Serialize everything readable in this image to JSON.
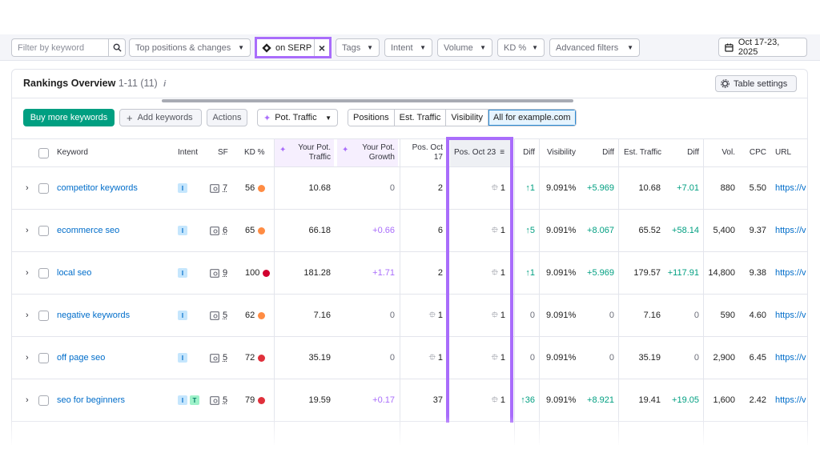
{
  "filters": {
    "search_placeholder": "Filter by keyword",
    "top_positions": "Top positions & changes",
    "serp_chip": "on SERP",
    "tags": "Tags",
    "intent": "Intent",
    "volume": "Volume",
    "kd": "KD %",
    "advanced": "Advanced filters",
    "date": "Oct 17-23, 2025"
  },
  "overview": {
    "title": "Rankings Overview",
    "range": "1-11 (11)",
    "info": "i",
    "table_settings": "Table settings"
  },
  "toolbar": {
    "buy": "Buy more keywords",
    "add": "Add keywords",
    "actions": "Actions",
    "pot_traffic": "Pot. Traffic",
    "segments": [
      "Positions",
      "Est. Traffic",
      "Visibility",
      "All for example.com"
    ]
  },
  "columns": {
    "keyword": "Keyword",
    "intent": "Intent",
    "sf": "SF",
    "kd": "KD %",
    "pot_traffic": "Your Pot. Traffic",
    "pot_growth": "Your Pot. Growth",
    "pos_oct17": "Pos. Oct 17",
    "pos_oct23": "Pos. Oct 23",
    "diff": "Diff",
    "visibility": "Visibility",
    "diff2": "Diff",
    "est_traffic": "Est. Traffic",
    "diff3": "Diff",
    "vol": "Vol.",
    "cpc": "CPC",
    "url": "URL"
  },
  "rows": [
    {
      "keyword": "competitor keywords",
      "intents": [
        "I"
      ],
      "sf": "7",
      "kd": "56",
      "kd_color": "#ff8c43",
      "pot_traffic": "10.68",
      "pot_growth": "0",
      "pos17": "2",
      "pos17_icon": false,
      "pos23": "1",
      "diff": "1",
      "diff_dir": "up",
      "visibility": "9.091%",
      "vis_diff": "+5.969",
      "est_traffic": "10.68",
      "est_diff": "+7.01",
      "vol": "880",
      "cpc": "5.50",
      "url": "https://v"
    },
    {
      "keyword": "ecommerce seo",
      "intents": [
        "I"
      ],
      "sf": "6",
      "kd": "65",
      "kd_color": "#ff8c43",
      "pot_traffic": "66.18",
      "pot_growth": "+0.66",
      "pos17": "6",
      "pos17_icon": false,
      "pos23": "1",
      "diff": "5",
      "diff_dir": "up",
      "visibility": "9.091%",
      "vis_diff": "+8.067",
      "est_traffic": "65.52",
      "est_diff": "+58.14",
      "vol": "5,400",
      "cpc": "9.37",
      "url": "https://v"
    },
    {
      "keyword": "local seo",
      "intents": [
        "I"
      ],
      "sf": "9",
      "kd": "100",
      "kd_color": "#d1002f",
      "pot_traffic": "181.28",
      "pot_growth": "+1.71",
      "pos17": "2",
      "pos17_icon": false,
      "pos23": "1",
      "diff": "1",
      "diff_dir": "up",
      "visibility": "9.091%",
      "vis_diff": "+5.969",
      "est_traffic": "179.57",
      "est_diff": "+117.91",
      "vol": "14,800",
      "cpc": "9.38",
      "url": "https://v"
    },
    {
      "keyword": "negative keywords",
      "intents": [
        "I"
      ],
      "sf": "5",
      "kd": "62",
      "kd_color": "#ff8c43",
      "pot_traffic": "7.16",
      "pot_growth": "0",
      "pos17": "1",
      "pos17_icon": true,
      "pos23": "1",
      "diff": "0",
      "diff_dir": "none",
      "visibility": "9.091%",
      "vis_diff": "0",
      "est_traffic": "7.16",
      "est_diff": "0",
      "vol": "590",
      "cpc": "4.60",
      "url": "https://v"
    },
    {
      "keyword": "off page seo",
      "intents": [
        "I"
      ],
      "sf": "5",
      "kd": "72",
      "kd_color": "#e0303b",
      "pot_traffic": "35.19",
      "pot_growth": "0",
      "pos17": "1",
      "pos17_icon": true,
      "pos23": "1",
      "diff": "0",
      "diff_dir": "none",
      "visibility": "9.091%",
      "vis_diff": "0",
      "est_traffic": "35.19",
      "est_diff": "0",
      "vol": "2,900",
      "cpc": "6.45",
      "url": "https://v"
    },
    {
      "keyword": "seo for beginners",
      "intents": [
        "I",
        "T"
      ],
      "sf": "5",
      "kd": "79",
      "kd_color": "#e0303b",
      "pot_traffic": "19.59",
      "pot_growth": "+0.17",
      "pos17": "37",
      "pos17_icon": false,
      "pos23": "1",
      "diff": "36",
      "diff_dir": "up",
      "visibility": "9.091%",
      "vis_diff": "+8.921",
      "est_traffic": "19.41",
      "est_diff": "+19.05",
      "vol": "1,600",
      "cpc": "2.42",
      "url": "https://v"
    }
  ],
  "colors": {
    "accent_purple": "#a96dfb",
    "brand_green": "#009f81",
    "link_blue": "#006dca"
  }
}
